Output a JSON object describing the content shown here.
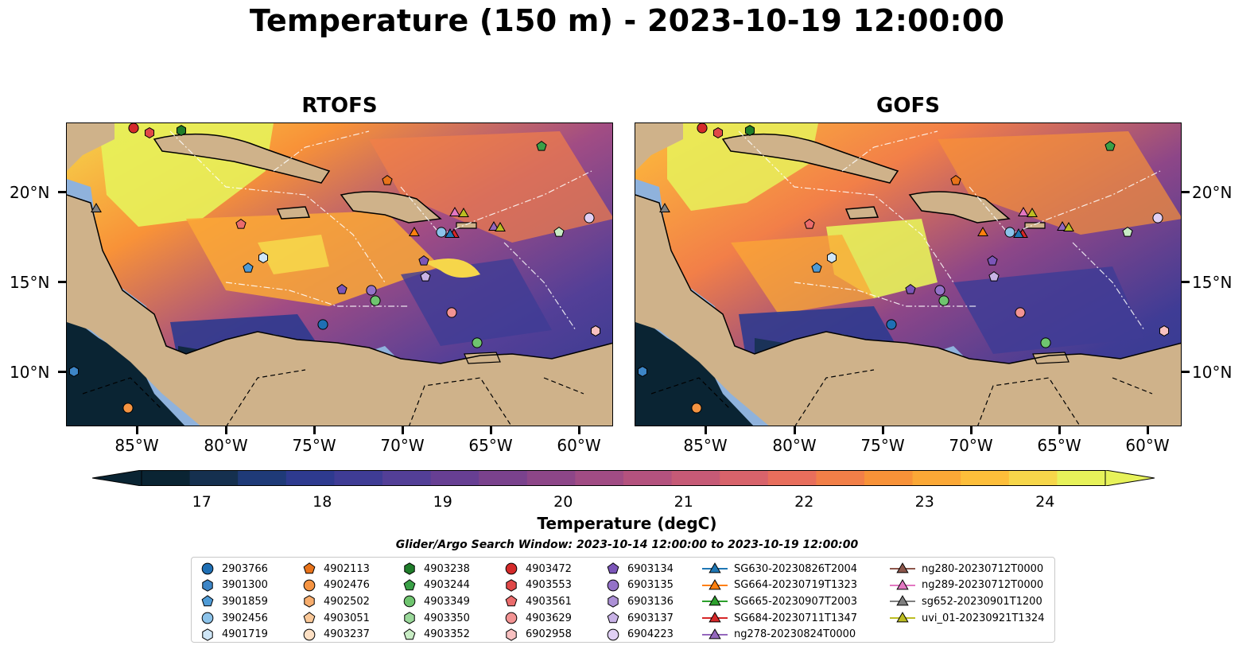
{
  "title": "Temperature (150 m) - 2023-10-19 12:00:00",
  "panels": [
    {
      "title": "RTOFS"
    },
    {
      "title": "GOFS"
    }
  ],
  "axes": {
    "yticks": [
      "20°N",
      "15°N",
      "10°N"
    ],
    "xticks": [
      "85°W",
      "80°W",
      "75°W",
      "70°W",
      "65°W",
      "60°W"
    ]
  },
  "colorbar": {
    "label": "Temperature (degC)",
    "ticks": [
      "17",
      "18",
      "19",
      "20",
      "21",
      "22",
      "23",
      "24"
    ],
    "min": 16.5,
    "max": 24.5,
    "extend": "both",
    "colors": [
      "#0a2433",
      "#15304f",
      "#1f3a78",
      "#2e3a8f",
      "#3f3c95",
      "#533f97",
      "#673f93",
      "#7a428d",
      "#8d4688",
      "#a14c84",
      "#b4527e",
      "#c65a76",
      "#d8636b",
      "#e86e5c",
      "#f27f48",
      "#f89238",
      "#fba836",
      "#fdbe3a",
      "#f6d64a",
      "#e7f25a"
    ]
  },
  "search_window": "Glider/Argo Search Window: 2023-10-14 12:00:00 to 2023-10-19 12:00:00",
  "legend": {
    "columns": [
      [
        {
          "label": "2903766",
          "marker": "circle",
          "color": "#1f6fb4"
        },
        {
          "label": "3901300",
          "marker": "hexagon",
          "color": "#3d85c6"
        },
        {
          "label": "3901859",
          "marker": "pentagon",
          "color": "#4f9bd6"
        },
        {
          "label": "3902456",
          "marker": "circle",
          "color": "#8cc3ea"
        },
        {
          "label": "4901719",
          "marker": "hexagon",
          "color": "#cfe6f7"
        }
      ],
      [
        {
          "label": "4902113",
          "marker": "pentagon",
          "color": "#e8731a"
        },
        {
          "label": "4902476",
          "marker": "circle",
          "color": "#f59442"
        },
        {
          "label": "4902502",
          "marker": "hexagon",
          "color": "#f7ad6d"
        },
        {
          "label": "4903051",
          "marker": "pentagon",
          "color": "#fac898"
        },
        {
          "label": "4903237",
          "marker": "circle",
          "color": "#fde0c4"
        }
      ],
      [
        {
          "label": "4903238",
          "marker": "hexagon",
          "color": "#1f7d2a"
        },
        {
          "label": "4903244",
          "marker": "pentagon",
          "color": "#3aa047"
        },
        {
          "label": "4903349",
          "marker": "circle",
          "color": "#6fc46f"
        },
        {
          "label": "4903350",
          "marker": "hexagon",
          "color": "#9ad89a"
        },
        {
          "label": "4903352",
          "marker": "pentagon",
          "color": "#c8ecc4"
        }
      ],
      [
        {
          "label": "4903472",
          "marker": "circle",
          "color": "#d42a2a"
        },
        {
          "label": "4903553",
          "marker": "hexagon",
          "color": "#e04848"
        },
        {
          "label": "4903561",
          "marker": "pentagon",
          "color": "#ea6c6c"
        },
        {
          "label": "4903629",
          "marker": "circle",
          "color": "#f29393"
        },
        {
          "label": "6902958",
          "marker": "hexagon",
          "color": "#f8c0c0"
        }
      ],
      [
        {
          "label": "6903134",
          "marker": "pentagon",
          "color": "#7b55b8"
        },
        {
          "label": "6903135",
          "marker": "circle",
          "color": "#9472c8"
        },
        {
          "label": "6903136",
          "marker": "hexagon",
          "color": "#ac90d6"
        },
        {
          "label": "6903137",
          "marker": "pentagon",
          "color": "#c8b2e6"
        },
        {
          "label": "6904223",
          "marker": "circle",
          "color": "#e0d0f4"
        }
      ],
      [
        {
          "label": "SG630-20230826T2004",
          "marker": "triangle",
          "color": "#1f77b4"
        },
        {
          "label": "SG664-20230719T1323",
          "marker": "triangle",
          "color": "#ff7f0e"
        },
        {
          "label": "SG665-20230907T2003",
          "marker": "triangle",
          "color": "#2ca02c"
        },
        {
          "label": "SG684-20230711T1347",
          "marker": "triangle",
          "color": "#d62728"
        },
        {
          "label": "ng278-20230824T0000",
          "marker": "triangle",
          "color": "#9467bd"
        }
      ],
      [
        {
          "label": "ng280-20230712T0000",
          "marker": "triangle",
          "color": "#8c564b"
        },
        {
          "label": "ng289-20230712T0000",
          "marker": "triangle",
          "color": "#e377c2"
        },
        {
          "label": "sg652-20230901T1200",
          "marker": "triangle",
          "color": "#7f7f7f"
        },
        {
          "label": "uvi_01-20230921T1324",
          "marker": "triangle",
          "color": "#bcbd22"
        }
      ]
    ]
  }
}
